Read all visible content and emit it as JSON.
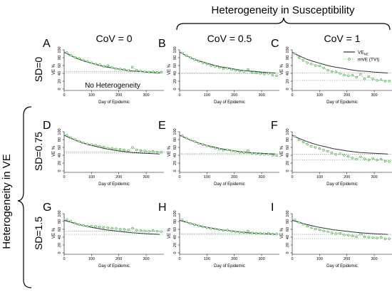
{
  "figure": {
    "top_group_label": "Heterogeneity in Susceptibility",
    "left_group_label": "Heterogeneity in VE",
    "column_labels": [
      "CoV = 0",
      "CoV = 0.5",
      "CoV = 1"
    ],
    "row_labels": [
      "SD=0",
      "SD=0.75",
      "SD=1.5"
    ],
    "panel_letters": [
      "A",
      "B",
      "C",
      "D",
      "E",
      "F",
      "G",
      "H",
      "I"
    ],
    "inset_label": "No Heterogeneity",
    "legend": [
      {
        "label": "VE",
        "subscript": "NE",
        "style": "line",
        "color": "#000000"
      },
      {
        "label": "mVE (TVI)",
        "style": "dashed-circles",
        "color": "#2ca02c"
      }
    ],
    "colors": {
      "line": "#333333",
      "marker": "#33a02c",
      "reference": "#7f7f7f",
      "reference_green": "#6fbf6f"
    }
  },
  "chart_data": [
    {
      "panel": "A",
      "type": "line",
      "xlabel": "Day of Epidemic",
      "ylabel": "VE %",
      "xlim": [
        0,
        365
      ],
      "ylim": [
        0,
        100
      ],
      "xticks": [
        0,
        100,
        200,
        300
      ],
      "yticks": [
        0,
        20,
        40,
        60,
        80,
        100
      ],
      "series": [
        {
          "name": "VE NE",
          "x": [
            0,
            25,
            50,
            75,
            100,
            125,
            150,
            175,
            200,
            225,
            250,
            275,
            300,
            325,
            350
          ],
          "y": [
            94,
            85,
            77,
            71,
            66,
            61,
            57,
            54,
            51,
            48,
            46,
            45,
            43,
            42,
            41
          ]
        },
        {
          "name": "mVE (TVI)",
          "x": [
            10,
            25,
            40,
            55,
            70,
            85,
            100,
            115,
            130,
            145,
            160,
            175,
            190,
            205,
            220,
            235,
            250,
            265,
            280,
            295,
            310,
            325,
            340,
            355
          ],
          "y": [
            93,
            86,
            81,
            78,
            74,
            70,
            67,
            64,
            62,
            58,
            60,
            55,
            52,
            51,
            50,
            47,
            56,
            48,
            46,
            44,
            43,
            44,
            42,
            43
          ]
        }
      ],
      "reference_lines": [
        41,
        45
      ]
    },
    {
      "panel": "B",
      "type": "line",
      "xlabel": "Day of Epidemic",
      "ylabel": "VE %",
      "xlim": [
        0,
        365
      ],
      "ylim": [
        0,
        100
      ],
      "xticks": [
        0,
        100,
        200,
        300
      ],
      "yticks": [
        0,
        20,
        40,
        60,
        80,
        100
      ],
      "series": [
        {
          "name": "VE NE",
          "x": [
            0,
            25,
            50,
            75,
            100,
            125,
            150,
            175,
            200,
            225,
            250,
            275,
            300,
            325,
            350
          ],
          "y": [
            94,
            85,
            77,
            71,
            66,
            61,
            57,
            54,
            51,
            48,
            46,
            45,
            43,
            42,
            41
          ]
        },
        {
          "name": "mVE (TVI)",
          "x": [
            10,
            25,
            40,
            55,
            70,
            85,
            100,
            115,
            130,
            145,
            160,
            175,
            190,
            205,
            220,
            235,
            250,
            265,
            280,
            295,
            310,
            325,
            340,
            355
          ],
          "y": [
            92,
            85,
            80,
            75,
            71,
            67,
            64,
            60,
            58,
            55,
            52,
            53,
            50,
            48,
            46,
            45,
            50,
            42,
            41,
            40,
            38,
            40,
            35,
            34
          ]
        }
      ],
      "reference_lines": [
        39,
        41
      ]
    },
    {
      "panel": "C",
      "type": "line",
      "xlabel": "Day of Epidemic",
      "ylabel": "VE %",
      "xlim": [
        0,
        365
      ],
      "ylim": [
        0,
        100
      ],
      "xticks": [
        0,
        100,
        200,
        300
      ],
      "yticks": [
        0,
        20,
        40,
        60,
        80,
        100
      ],
      "series": [
        {
          "name": "VE NE",
          "x": [
            0,
            25,
            50,
            75,
            100,
            125,
            150,
            175,
            200,
            225,
            250,
            275,
            300,
            325,
            350
          ],
          "y": [
            94,
            85,
            77,
            71,
            66,
            61,
            57,
            54,
            51,
            48,
            46,
            45,
            43,
            42,
            41
          ]
        },
        {
          "name": "mVE (TVI)",
          "x": [
            10,
            25,
            40,
            55,
            70,
            85,
            100,
            115,
            130,
            145,
            160,
            175,
            190,
            205,
            220,
            235,
            250,
            265,
            280,
            295,
            310,
            325,
            340,
            355
          ],
          "y": [
            90,
            80,
            73,
            67,
            64,
            60,
            59,
            54,
            48,
            45,
            44,
            40,
            36,
            34,
            35,
            30,
            38,
            26,
            32,
            26,
            22,
            24,
            20,
            20
          ]
        }
      ],
      "reference_lines": [
        22,
        41
      ]
    },
    {
      "panel": "D",
      "type": "line",
      "xlabel": "Day of Epidemic",
      "ylabel": "VE %",
      "xlim": [
        0,
        365
      ],
      "ylim": [
        0,
        100
      ],
      "xticks": [
        0,
        100,
        200,
        300
      ],
      "yticks": [
        0,
        20,
        40,
        60,
        80,
        100
      ],
      "series": [
        {
          "name": "VE NE",
          "x": [
            0,
            25,
            50,
            75,
            100,
            125,
            150,
            175,
            200,
            225,
            250,
            275,
            300,
            325,
            350
          ],
          "y": [
            91,
            83,
            76,
            70,
            65,
            61,
            57,
            54,
            51,
            49,
            47,
            46,
            45,
            44,
            43
          ]
        },
        {
          "name": "mVE (TVI)",
          "x": [
            10,
            25,
            40,
            55,
            70,
            85,
            100,
            115,
            130,
            145,
            160,
            175,
            190,
            205,
            220,
            235,
            250,
            265,
            280,
            295,
            310,
            325,
            340,
            355
          ],
          "y": [
            91,
            85,
            80,
            76,
            72,
            69,
            67,
            66,
            63,
            61,
            58,
            58,
            56,
            55,
            53,
            52,
            60,
            54,
            52,
            51,
            49,
            50,
            48,
            48
          ]
        }
      ],
      "reference_lines": [
        44,
        48
      ]
    },
    {
      "panel": "E",
      "type": "line",
      "xlabel": "Day of Epidemic",
      "ylabel": "VE %",
      "xlim": [
        0,
        365
      ],
      "ylim": [
        0,
        100
      ],
      "xticks": [
        0,
        100,
        200,
        300
      ],
      "yticks": [
        0,
        20,
        40,
        60,
        80,
        100
      ],
      "series": [
        {
          "name": "VE NE",
          "x": [
            0,
            25,
            50,
            75,
            100,
            125,
            150,
            175,
            200,
            225,
            250,
            275,
            300,
            325,
            350
          ],
          "y": [
            91,
            83,
            76,
            70,
            65,
            61,
            57,
            54,
            51,
            49,
            47,
            46,
            45,
            44,
            43
          ]
        },
        {
          "name": "mVE (TVI)",
          "x": [
            10,
            25,
            40,
            55,
            70,
            85,
            100,
            115,
            130,
            145,
            160,
            175,
            190,
            205,
            220,
            235,
            250,
            265,
            280,
            295,
            310,
            325,
            340,
            355
          ],
          "y": [
            90,
            84,
            79,
            75,
            70,
            67,
            64,
            61,
            58,
            56,
            53,
            54,
            51,
            50,
            48,
            47,
            52,
            45,
            44,
            43,
            42,
            43,
            40,
            39
          ]
        }
      ],
      "reference_lines": [
        42,
        44
      ]
    },
    {
      "panel": "F",
      "type": "line",
      "xlabel": "Day of Epidemic",
      "ylabel": "VE %",
      "xlim": [
        0,
        365
      ],
      "ylim": [
        0,
        100
      ],
      "xticks": [
        0,
        100,
        200,
        300
      ],
      "yticks": [
        0,
        20,
        40,
        60,
        80,
        100
      ],
      "series": [
        {
          "name": "VE NE",
          "x": [
            0,
            25,
            50,
            75,
            100,
            125,
            150,
            175,
            200,
            225,
            250,
            275,
            300,
            325,
            350
          ],
          "y": [
            91,
            83,
            76,
            70,
            65,
            61,
            57,
            54,
            51,
            49,
            47,
            46,
            45,
            44,
            43
          ]
        },
        {
          "name": "mVE (TVI)",
          "x": [
            10,
            25,
            40,
            55,
            70,
            85,
            100,
            115,
            130,
            145,
            160,
            175,
            190,
            205,
            220,
            235,
            250,
            265,
            280,
            295,
            310,
            325,
            340,
            355
          ],
          "y": [
            88,
            80,
            74,
            68,
            63,
            60,
            57,
            53,
            50,
            46,
            42,
            44,
            40,
            37,
            33,
            30,
            36,
            31,
            28,
            32,
            28,
            30,
            25,
            24
          ]
        }
      ],
      "reference_lines": [
        28,
        43
      ]
    },
    {
      "panel": "G",
      "type": "line",
      "xlabel": "Day of Epidemic",
      "ylabel": "VE %",
      "xlim": [
        0,
        365
      ],
      "ylim": [
        0,
        100
      ],
      "xticks": [
        0,
        100,
        200,
        300
      ],
      "yticks": [
        0,
        20,
        40,
        60,
        80,
        100
      ],
      "series": [
        {
          "name": "VE NE",
          "x": [
            0,
            25,
            50,
            75,
            100,
            125,
            150,
            175,
            200,
            225,
            250,
            275,
            300,
            325,
            350
          ],
          "y": [
            83,
            78,
            73,
            69,
            65,
            62,
            59,
            57,
            55,
            53,
            51,
            50,
            49,
            48,
            47
          ]
        },
        {
          "name": "mVE (TVI)",
          "x": [
            10,
            25,
            40,
            55,
            70,
            85,
            100,
            115,
            130,
            145,
            160,
            175,
            190,
            205,
            220,
            235,
            250,
            265,
            280,
            295,
            310,
            325,
            340,
            355
          ],
          "y": [
            85,
            80,
            76,
            72,
            70,
            68,
            68,
            67,
            66,
            65,
            64,
            63,
            62,
            60,
            60,
            59,
            63,
            58,
            57,
            56,
            55,
            57,
            55,
            54
          ]
        }
      ],
      "reference_lines": [
        47,
        55
      ]
    },
    {
      "panel": "H",
      "type": "line",
      "xlabel": "Day of Epidemic",
      "ylabel": "VE %",
      "xlim": [
        0,
        365
      ],
      "ylim": [
        0,
        100
      ],
      "xticks": [
        0,
        100,
        200,
        300
      ],
      "yticks": [
        0,
        20,
        40,
        60,
        80,
        100
      ],
      "series": [
        {
          "name": "VE NE",
          "x": [
            0,
            25,
            50,
            75,
            100,
            125,
            150,
            175,
            200,
            225,
            250,
            275,
            300,
            325,
            350
          ],
          "y": [
            83,
            78,
            73,
            69,
            65,
            62,
            59,
            57,
            55,
            53,
            51,
            50,
            49,
            48,
            47
          ]
        },
        {
          "name": "mVE (TVI)",
          "x": [
            10,
            25,
            40,
            55,
            70,
            85,
            100,
            115,
            130,
            145,
            160,
            175,
            190,
            205,
            220,
            235,
            250,
            265,
            280,
            295,
            310,
            325,
            340,
            355
          ],
          "y": [
            84,
            79,
            75,
            72,
            69,
            66,
            64,
            62,
            61,
            59,
            57,
            58,
            55,
            54,
            53,
            52,
            56,
            51,
            50,
            50,
            49,
            50,
            48,
            48
          ]
        }
      ],
      "reference_lines": [
        47,
        49
      ]
    },
    {
      "panel": "I",
      "type": "line",
      "xlabel": "Day of Epidemic",
      "ylabel": "VE %",
      "xlim": [
        0,
        365
      ],
      "ylim": [
        0,
        100
      ],
      "xticks": [
        0,
        100,
        200,
        300
      ],
      "yticks": [
        0,
        20,
        40,
        60,
        80,
        100
      ],
      "series": [
        {
          "name": "VE NE",
          "x": [
            0,
            25,
            50,
            75,
            100,
            125,
            150,
            175,
            200,
            225,
            250,
            275,
            300,
            325,
            350
          ],
          "y": [
            83,
            78,
            73,
            69,
            65,
            62,
            59,
            57,
            55,
            53,
            51,
            50,
            49,
            48,
            47
          ]
        },
        {
          "name": "mVE (TVI)",
          "x": [
            10,
            25,
            40,
            55,
            70,
            85,
            100,
            115,
            130,
            145,
            160,
            175,
            190,
            205,
            220,
            235,
            250,
            265,
            280,
            295,
            310,
            325,
            340,
            355
          ],
          "y": [
            84,
            78,
            73,
            68,
            64,
            61,
            59,
            56,
            54,
            51,
            49,
            50,
            46,
            45,
            43,
            41,
            48,
            41,
            40,
            39,
            38,
            40,
            36,
            36
          ]
        }
      ],
      "reference_lines": [
        36,
        47
      ]
    }
  ]
}
